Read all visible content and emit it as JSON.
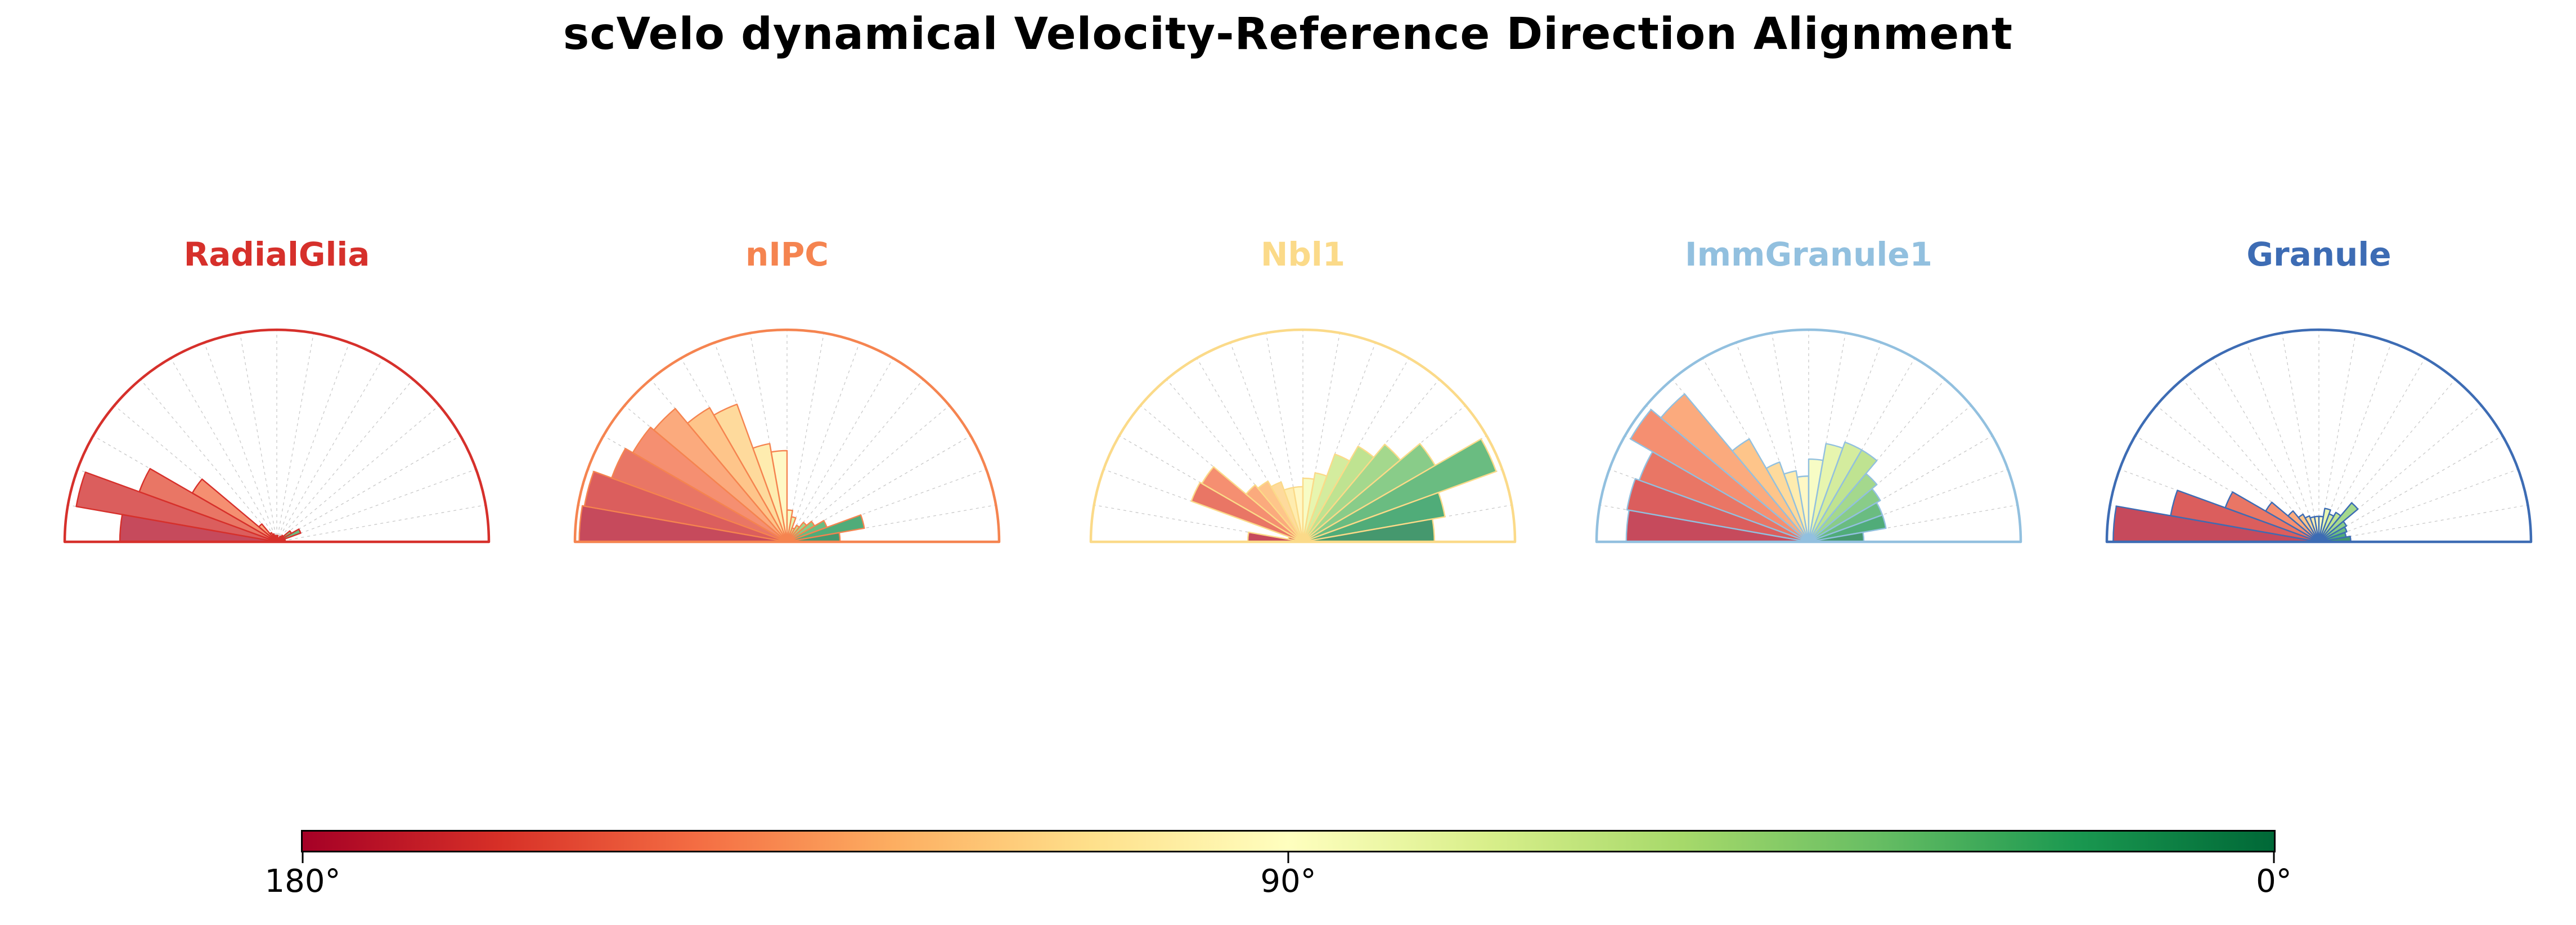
{
  "title": "scVelo dynamical Velocity-Reference Direction Alignment",
  "chart_data": {
    "type": "polar_half_rose_small_multiples",
    "description": "Five half-circle (0-180 degree) polar histograms of velocity-reference direction alignment angles, one per cell type. Bars are 10-degree bins colored by bin angle with a red-yellow-green colormap (180 deg = dark red, 90 deg = pale yellow, 0 deg = dark green). Bar length is relative frequency (fraction of outer radius).",
    "bin_width_deg": 10,
    "angle_range_deg": [
      0,
      180
    ],
    "bin_centers_deg": [
      175,
      165,
      155,
      145,
      135,
      125,
      115,
      105,
      95,
      85,
      75,
      65,
      55,
      45,
      35,
      25,
      15,
      5
    ],
    "r_max": 1.0,
    "grid": {
      "radial_lines_every_deg": 10,
      "style": "dashed"
    },
    "colormap_anchors": [
      "#a50026",
      "#d73027",
      "#f46d43",
      "#fdae61",
      "#fee08b",
      "#ffffbf",
      "#d9ef8b",
      "#a6d96a",
      "#66bd63",
      "#1a9850",
      "#006837"
    ],
    "bar_fill_opacity": 0.75,
    "subplots": [
      {
        "name": "RadialGlia",
        "accent": "#d6302b",
        "values": [
          0.74,
          0.96,
          0.69,
          0.46,
          0.11,
          0.05,
          0.04,
          0.03,
          0.03,
          0.03,
          0.02,
          0.02,
          0.03,
          0.04,
          0.08,
          0.12,
          0.04,
          0.03
        ]
      },
      {
        "name": "nIPC",
        "accent": "#f58450",
        "values": [
          0.98,
          0.97,
          0.88,
          0.84,
          0.82,
          0.73,
          0.69,
          0.47,
          0.43,
          0.15,
          0.12,
          0.07,
          0.09,
          0.12,
          0.15,
          0.2,
          0.37,
          0.25
        ]
      },
      {
        "name": "Nbl1",
        "accent": "#fbda89",
        "values": [
          0.26,
          0.07,
          0.56,
          0.55,
          0.35,
          0.33,
          0.3,
          0.26,
          0.26,
          0.3,
          0.33,
          0.44,
          0.52,
          0.6,
          0.72,
          0.97,
          0.68,
          0.62
        ]
      },
      {
        "name": "ImmGranule1",
        "accent": "#92c0df",
        "values": [
          0.86,
          0.87,
          0.85,
          0.97,
          0.91,
          0.56,
          0.4,
          0.34,
          0.31,
          0.39,
          0.47,
          0.5,
          0.5,
          0.42,
          0.39,
          0.37,
          0.37,
          0.26
        ]
      },
      {
        "name": "Granule",
        "accent": "#3d6cb4",
        "values": [
          0.97,
          0.71,
          0.47,
          0.29,
          0.19,
          0.15,
          0.13,
          0.12,
          0.12,
          0.12,
          0.16,
          0.14,
          0.16,
          0.24,
          0.15,
          0.14,
          0.13,
          0.15
        ]
      }
    ],
    "colorbar": {
      "orientation": "horizontal",
      "outline_color": "#000000",
      "ticks": [
        {
          "label": "180°",
          "pos": 0.0
        },
        {
          "label": "90°",
          "pos": 0.5
        },
        {
          "label": "0°",
          "pos": 1.0
        }
      ]
    }
  }
}
